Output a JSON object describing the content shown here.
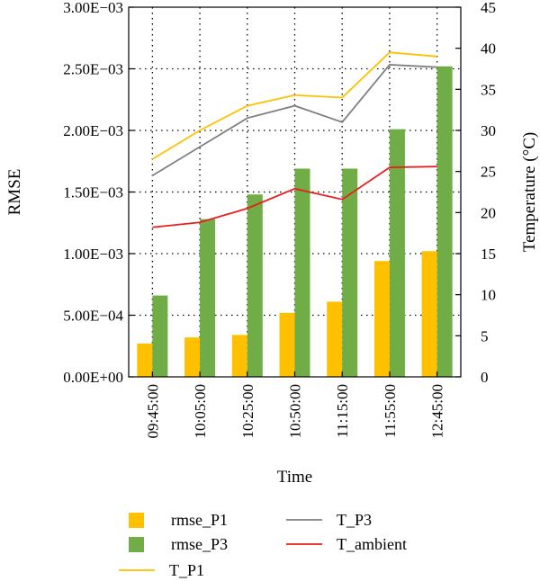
{
  "chart_data": {
    "type": "bar",
    "categories": [
      "09:45:00",
      "10:05:00",
      "10:25:00",
      "10:50:00",
      "11:15:00",
      "11:55:00",
      "12:45:00"
    ],
    "xlabel": "Time",
    "ylabel": "RMSE",
    "y2label": "Temperature (°C)",
    "ylim": [
      0,
      0.003
    ],
    "y2lim": [
      0,
      45
    ],
    "yticks": [
      "0.00E+00",
      "5.00E−04",
      "1.00E−03",
      "1.50E−03",
      "2.00E−03",
      "2.50E−03",
      "3.00E−03"
    ],
    "y2ticks": [
      "0",
      "5",
      "10",
      "15",
      "20",
      "25",
      "30",
      "35",
      "40",
      "45"
    ],
    "grid": "dotted",
    "legend_position": "bottom",
    "bar_series": [
      {
        "name": "rmse_P1",
        "color": "#FFC000",
        "values": [
          0.00027,
          0.00032,
          0.00034,
          0.00052,
          0.00061,
          0.00094,
          0.00102
        ]
      },
      {
        "name": "rmse_P3",
        "color": "#70AD47",
        "values": [
          0.00066,
          0.00128,
          0.00148,
          0.00169,
          0.00169,
          0.00201,
          0.00252
        ]
      }
    ],
    "line_series": [
      {
        "name": "T_P1",
        "color": "#FFC000",
        "axis": "right",
        "values": [
          26.5,
          30.0,
          33.0,
          34.3,
          34.0,
          39.5,
          39.0
        ]
      },
      {
        "name": "T_P3",
        "color": "#808080",
        "axis": "right",
        "values": [
          24.5,
          28.0,
          31.5,
          33.0,
          31.0,
          38.0,
          37.7
        ]
      },
      {
        "name": "T_ambient",
        "color": "#E8201C",
        "axis": "right",
        "values": [
          18.2,
          18.8,
          20.5,
          22.9,
          21.6,
          25.5,
          25.6
        ]
      }
    ]
  }
}
